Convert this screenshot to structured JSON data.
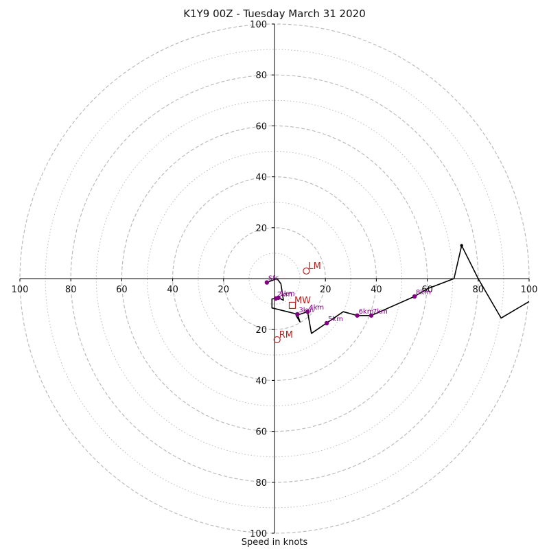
{
  "chart_data": {
    "type": "hodograph",
    "title": "K1Y9 00Z - Tuesday March 31 2020",
    "xlabel": "Speed in knots",
    "axis_range": [
      -100,
      100
    ],
    "major_rings": [
      20,
      40,
      60,
      80,
      100
    ],
    "minor_rings": [
      10,
      30,
      50,
      70,
      90
    ],
    "x_tick_labels": [
      "100",
      "80",
      "60",
      "40",
      "20",
      "20",
      "40",
      "60",
      "80",
      "100"
    ],
    "y_tick_labels": [
      "100",
      "80",
      "60",
      "40",
      "20",
      "20",
      "40",
      "60",
      "80",
      "100"
    ],
    "hodograph_trace": [
      {
        "u": -3,
        "v": -1.5
      },
      {
        "u": 1,
        "v": 0
      },
      {
        "u": 2.5,
        "v": -2
      },
      {
        "u": 3.5,
        "v": -8.5
      },
      {
        "u": 1.5,
        "v": -7.5
      },
      {
        "u": -1,
        "v": -8
      },
      {
        "u": -1,
        "v": -11.5
      },
      {
        "u": 5,
        "v": -13
      },
      {
        "u": 9,
        "v": -14
      },
      {
        "u": 10,
        "v": -17
      },
      {
        "u": 8.5,
        "v": -14.5
      },
      {
        "u": 13,
        "v": -13
      },
      {
        "u": 14.5,
        "v": -21.5
      },
      {
        "u": 27,
        "v": -13
      },
      {
        "u": 32.5,
        "v": -14.5
      },
      {
        "u": 38,
        "v": -14.5
      },
      {
        "u": 55,
        "v": -7
      },
      {
        "u": 60,
        "v": -4
      },
      {
        "u": 70.5,
        "v": 0
      },
      {
        "u": 73.5,
        "v": 13
      },
      {
        "u": 80,
        "v": 0
      },
      {
        "u": 89,
        "v": -15.5
      },
      {
        "u": 100,
        "v": -9
      }
    ],
    "trace_color": "#000000",
    "height_markers": [
      {
        "label": "Sfc",
        "u": -3,
        "v": -1.5
      },
      {
        "label": "1km",
        "u": 1.5,
        "v": -7.5
      },
      {
        "label": "2km",
        "u": 0.5,
        "v": -7.8
      },
      {
        "label": "3km",
        "u": 9,
        "v": -14
      },
      {
        "label": "4km",
        "u": 13,
        "v": -13
      },
      {
        "label": "5km",
        "u": 20.5,
        "v": -17.5
      },
      {
        "label": "6km",
        "u": 32.5,
        "v": -14.5
      },
      {
        "label": "7km",
        "u": 38,
        "v": -14.5
      },
      {
        "label": "8km",
        "u": 55,
        "v": -7
      }
    ],
    "height_marker_color": "#800080",
    "top_marker": {
      "u": 73.5,
      "v": 13
    },
    "motion_markers": [
      {
        "label": "LM",
        "u": 12.5,
        "v": 3,
        "shape": "circle"
      },
      {
        "label": "MW",
        "u": 7,
        "v": -10.5,
        "shape": "square"
      },
      {
        "label": "RM",
        "u": 1,
        "v": -24,
        "shape": "circle"
      }
    ],
    "motion_marker_color": "#b22222",
    "ring_color": "#bbbbbb",
    "axis_color": "#000000"
  }
}
